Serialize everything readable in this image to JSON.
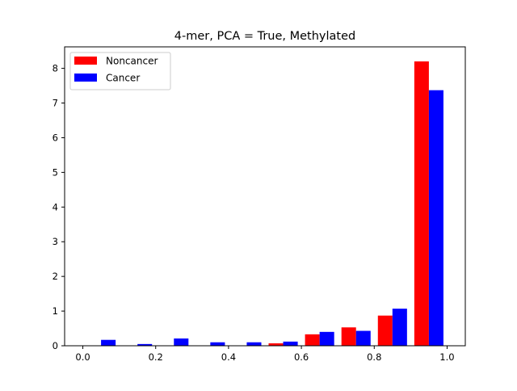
{
  "chart_data": {
    "type": "bar",
    "title": "4-mer, PCA = True,  Methylated",
    "xlabel": "",
    "ylabel": "",
    "xlim": [
      -0.05,
      1.05
    ],
    "ylim": [
      0,
      8.62
    ],
    "xticks": [
      0.0,
      0.2,
      0.4,
      0.6,
      0.8,
      1.0
    ],
    "xtick_labels": [
      "0.0",
      "0.2",
      "0.4",
      "0.6",
      "0.8",
      "1.0"
    ],
    "yticks": [
      0,
      1,
      2,
      3,
      4,
      5,
      6,
      7,
      8
    ],
    "ytick_labels": [
      "0",
      "1",
      "2",
      "3",
      "4",
      "5",
      "6",
      "7",
      "8"
    ],
    "grid": false,
    "legend_position": "upper-left",
    "bin_edges": [
      0.0,
      0.1,
      0.2,
      0.3,
      0.4,
      0.5,
      0.6,
      0.7,
      0.8,
      0.9,
      1.0
    ],
    "series": [
      {
        "name": "Noncancer",
        "color": "#ff0000",
        "values": [
          0.0,
          0.0,
          0.0,
          0.0,
          0.0,
          0.07,
          0.33,
          0.53,
          0.87,
          8.2
        ]
      },
      {
        "name": "Cancer",
        "color": "#0000ff",
        "values": [
          0.17,
          0.05,
          0.21,
          0.1,
          0.1,
          0.12,
          0.4,
          0.43,
          1.07,
          7.37
        ]
      }
    ]
  }
}
